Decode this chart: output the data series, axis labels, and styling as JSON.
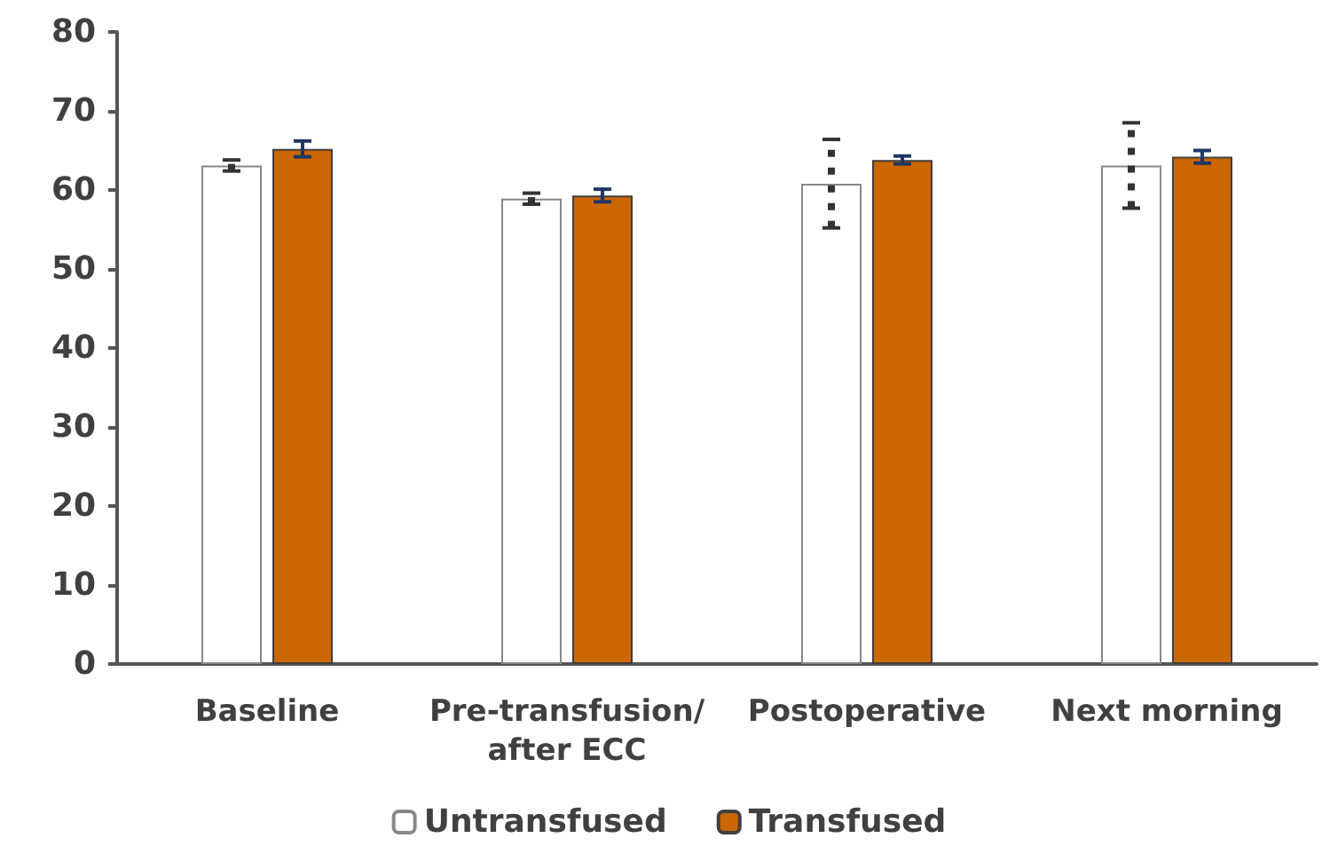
{
  "chart_data": {
    "type": "bar",
    "categories": [
      "Baseline",
      "Pre-transfusion/\nafter ECC",
      "Postoperative",
      "Next morning"
    ],
    "series": [
      {
        "name": "Untransfused",
        "color": "#ffffff",
        "values": [
          63.1,
          58.9,
          60.8,
          63.1
        ],
        "errors": [
          0.7,
          0.7,
          5.6,
          5.4
        ]
      },
      {
        "name": "Transfused",
        "color": "#cc6600",
        "values": [
          65.2,
          59.3,
          63.8,
          64.2
        ],
        "errors": [
          1.0,
          0.8,
          0.5,
          0.8
        ]
      }
    ],
    "ylim": [
      0,
      80
    ],
    "yticks": [
      0,
      10,
      20,
      30,
      40,
      50,
      60,
      70,
      80
    ],
    "grid": false,
    "legend": "bottom"
  }
}
